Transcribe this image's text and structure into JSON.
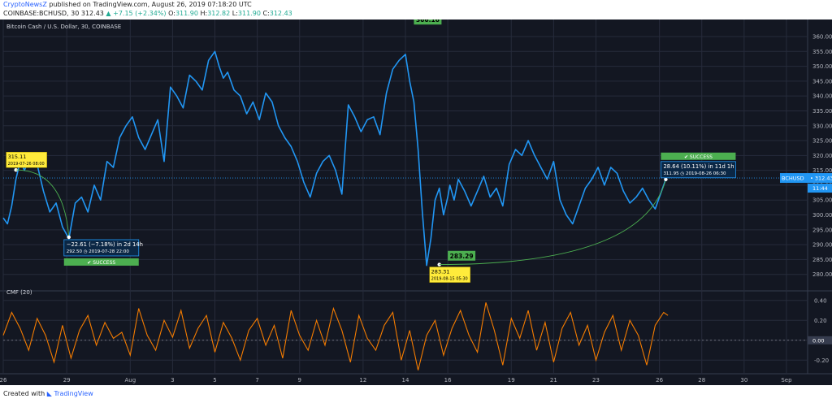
{
  "header": {
    "author": "CryptoNewsZ",
    "published_text": "published on TradingView.com, August 26, 2019 07:18:20 UTC",
    "symbol": "COINBASE:BCHUSD, 30",
    "last": "312.43",
    "change": "+7.15 (+2.34%)",
    "o_label": "O:",
    "o_value": "311.90",
    "h_label": "H:",
    "h_value": "312.82",
    "l_label": "L:",
    "l_value": "311.90",
    "c_label": "C:",
    "c_value": "312.43"
  },
  "footer": {
    "created_with": "Created with",
    "brand": "TradingView"
  },
  "colors": {
    "background": "#131722",
    "price_line": "#2196f3",
    "cmf_line": "#f57c00",
    "success": "#4caf50",
    "annotation": "#ffeb3b",
    "grid": "#262b3b"
  },
  "chart_data": [
    {
      "type": "line",
      "title": "Bitcoin Cash / U.S. Dollar, 30, COINBASE",
      "ylim": [
        275,
        363
      ],
      "y_ticks": [
        "360.00",
        "355.00",
        "350.00",
        "345.00",
        "340.00",
        "335.00",
        "330.00",
        "325.00",
        "320.00",
        "315.00",
        "310.00",
        "305.00",
        "300.00",
        "295.00",
        "290.00",
        "285.00",
        "280.00"
      ],
      "x_ticks": [
        "26",
        "29",
        "Aug",
        "3",
        "5",
        "7",
        "9",
        "12",
        "14",
        "16",
        "19",
        "21",
        "23",
        "26",
        "28",
        "30",
        "Sep"
      ],
      "x_ticks_day": [
        0,
        3,
        6,
        8,
        10,
        12,
        14,
        17,
        19,
        21,
        24,
        26,
        28,
        31,
        33,
        35,
        37
      ],
      "series": [
        {
          "x_day": [
            0,
            0.2,
            0.4,
            0.6,
            0.8,
            1.0,
            1.3,
            1.6,
            1.9,
            2.2,
            2.5,
            2.8,
            3.1,
            3.4,
            3.7,
            4.0,
            4.3,
            4.6,
            4.9,
            5.2,
            5.5,
            5.8,
            6.1,
            6.4,
            6.7,
            7.0,
            7.3,
            7.6,
            7.9,
            8.2,
            8.5,
            8.8,
            9.1,
            9.4,
            9.7,
            10.0,
            10.2,
            10.4,
            10.6,
            10.9,
            11.2,
            11.5,
            11.8,
            12.1,
            12.4,
            12.7,
            13.0,
            13.3,
            13.6,
            13.9,
            14.2,
            14.5,
            14.8,
            15.1,
            15.4,
            15.7,
            16.0,
            16.3,
            16.6,
            16.9,
            17.2,
            17.5,
            17.8,
            18.1,
            18.4,
            18.7,
            19.0,
            19.2,
            19.4,
            19.6,
            19.8,
            20.0,
            20.2,
            20.4,
            20.6,
            20.8,
            21.0,
            21.1,
            21.3,
            21.5,
            21.8,
            22.1,
            22.4,
            22.7,
            23.0,
            23.3,
            23.6,
            23.9,
            24.2,
            24.5,
            24.8,
            25.1,
            25.4,
            25.7,
            26.0,
            26.3,
            26.6,
            26.9,
            27.2,
            27.5,
            27.8,
            28.1,
            28.4,
            28.7,
            29.0,
            29.3,
            29.6,
            29.9,
            30.2,
            30.5,
            30.8,
            31.1,
            31.3
          ],
          "values": [
            299,
            297,
            303,
            312,
            318,
            315,
            320,
            317,
            308,
            301,
            304,
            296,
            292,
            304,
            306,
            301,
            310,
            305,
            318,
            316,
            326,
            330,
            333,
            326,
            322,
            327,
            332,
            318,
            343,
            340,
            336,
            347,
            345,
            342,
            352,
            355,
            350,
            346,
            348,
            342,
            340,
            334,
            338,
            332,
            341,
            338,
            330,
            326,
            323,
            318,
            311,
            306,
            314,
            318,
            320,
            315,
            307,
            337,
            333,
            328,
            332,
            333,
            327,
            341,
            349,
            352,
            354,
            345,
            338,
            322,
            301,
            283,
            292,
            305,
            309,
            300,
            306,
            310,
            305,
            312,
            308,
            303,
            308,
            313,
            306,
            309,
            303,
            317,
            322,
            320,
            325,
            320,
            316,
            312,
            318,
            305,
            300,
            297,
            303,
            309,
            312,
            316,
            310,
            316,
            314,
            308,
            304,
            306,
            309,
            305,
            302,
            308,
            312
          ],
          "name": ""
        }
      ],
      "last_value_label": "BCHUSD",
      "last_value": "312.43",
      "countdown": "11:44",
      "annotations": [
        {
          "kind": "label",
          "text": "366.16",
          "x_day": 19.4,
          "y": 365.4
        },
        {
          "kind": "label",
          "text": "291.51",
          "x_day": 3.4,
          "y": 289.2
        },
        {
          "kind": "label",
          "text": "283.29",
          "x_day": 21.0,
          "y": 286.0
        },
        {
          "kind": "price_range",
          "price": "315.11",
          "when": "2019-07-26 08:00",
          "x_day": 0.6,
          "y": 315.11
        },
        {
          "kind": "measure",
          "line1": "−22.61 (−7.18%) in 2d 14h",
          "line2": "292.50  ◷ 2019-07-28  22:00",
          "status": "✔ SUCCESS",
          "x_day": 3.1,
          "y": 292.5
        },
        {
          "kind": "price_range",
          "price": "283.31",
          "when": "2019-08-15 05:30",
          "x_day": 20.6,
          "y": 283.31
        },
        {
          "kind": "measure",
          "line1": "28.64 (10.11%) in 11d 1h",
          "line2": "311.95  ◷ 2019-08-26  06:30",
          "status": "✔ SUCCESS",
          "x_day": 31.3,
          "y": 311.95
        }
      ]
    },
    {
      "type": "line",
      "title": "CMF (20)",
      "ylim": [
        -0.32,
        0.48
      ],
      "y_ticks": [
        "0.40",
        "0.20",
        "0.00",
        "-0.20"
      ],
      "zero_label": "0.00",
      "series": [
        {
          "x_day": [
            0,
            0.4,
            0.8,
            1.2,
            1.6,
            2.0,
            2.4,
            2.8,
            3.2,
            3.6,
            4.0,
            4.4,
            4.8,
            5.2,
            5.6,
            6.0,
            6.4,
            6.8,
            7.2,
            7.6,
            8.0,
            8.4,
            8.8,
            9.2,
            9.6,
            10.0,
            10.4,
            10.8,
            11.2,
            11.6,
            12.0,
            12.4,
            12.8,
            13.2,
            13.6,
            14.0,
            14.4,
            14.8,
            15.2,
            15.6,
            16.0,
            16.4,
            16.8,
            17.2,
            17.6,
            18.0,
            18.4,
            18.8,
            19.2,
            19.6,
            20.0,
            20.4,
            20.8,
            21.2,
            21.6,
            22.0,
            22.4,
            22.8,
            23.2,
            23.6,
            24.0,
            24.4,
            24.8,
            25.2,
            25.6,
            26.0,
            26.4,
            26.8,
            27.2,
            27.6,
            28.0,
            28.4,
            28.8,
            29.2,
            29.6,
            30.0,
            30.4,
            30.8,
            31.2,
            31.4
          ],
          "values": [
            0.05,
            0.28,
            0.12,
            -0.1,
            0.22,
            0.05,
            -0.22,
            0.15,
            -0.18,
            0.1,
            0.25,
            -0.05,
            0.18,
            0.02,
            0.08,
            -0.15,
            0.32,
            0.05,
            -0.1,
            0.2,
            0.03,
            0.3,
            -0.08,
            0.12,
            0.25,
            -0.12,
            0.18,
            0.02,
            -0.2,
            0.1,
            0.22,
            -0.05,
            0.15,
            -0.18,
            0.3,
            0.05,
            -0.1,
            0.2,
            -0.05,
            0.32,
            0.1,
            -0.22,
            0.25,
            0.02,
            -0.1,
            0.15,
            0.28,
            -0.2,
            0.1,
            -0.3,
            0.05,
            0.2,
            -0.15,
            0.12,
            0.3,
            0.05,
            -0.12,
            0.38,
            0.1,
            -0.25,
            0.22,
            0.02,
            0.3,
            -0.1,
            0.18,
            -0.22,
            0.12,
            0.28,
            -0.05,
            0.15,
            -0.2,
            0.08,
            0.25,
            -0.1,
            0.2,
            0.05,
            -0.25,
            0.15,
            0.28,
            0.25
          ],
          "name": ""
        }
      ]
    }
  ]
}
